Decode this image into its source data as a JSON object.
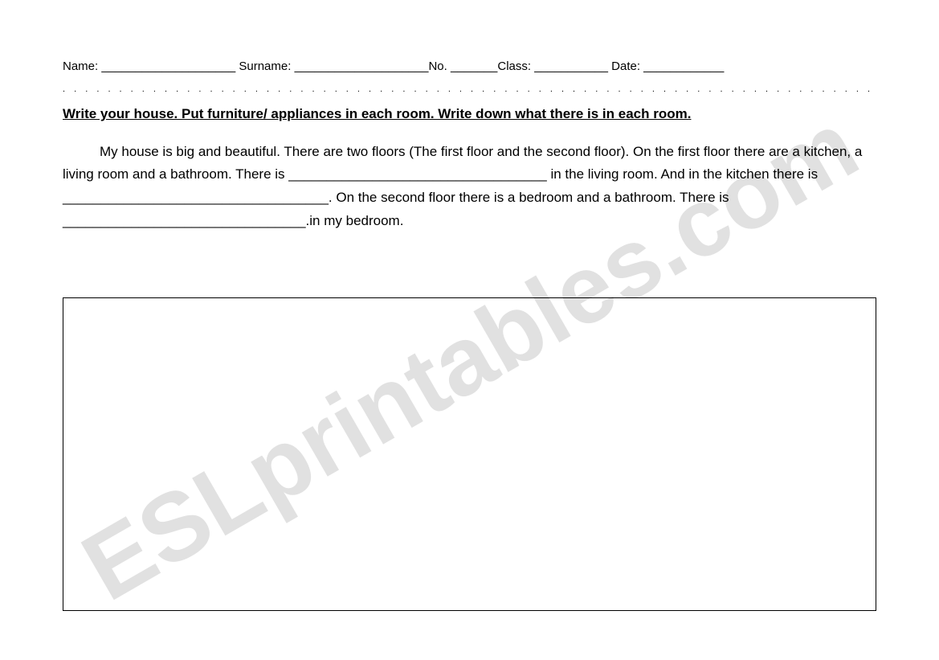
{
  "header": {
    "name_label": "Name:",
    "name_blank": " ____________________",
    "surname_label": " Surname:",
    "surname_blank": " ____________________",
    "no_label": "No.",
    "no_blank": " _______",
    "class_label": "Class:",
    "class_blank": " ___________",
    "date_label": "   Date:",
    "date_blank": " ____________"
  },
  "separator": ". . . . . . . . . . . . . . . . . . . . . . . . . . . . . . . . . . . . . . . . . . . . . . . . . . . . . . . . . . . . . . . . . . . . . . . . . . . . . . . . . . . . . . . . . . . . . . . . . . . . . . . . . . . . . . . . . . . . . .",
  "instruction": "Write your house. Put furniture/ appliances in each room. Write down what there is in each room.",
  "paragraph": {
    "p1": "My house is big and beautiful. There are two floors (The first floor and the second floor). On the first floor there are a kitchen, a living room and a bathroom. There is __________________________________ in the living room. And in the kitchen there is  ___________________________________. On the second floor there is a bedroom and a bathroom.   There is ________________________________.in my bedroom."
  },
  "watermark": "ESLprintables.com"
}
